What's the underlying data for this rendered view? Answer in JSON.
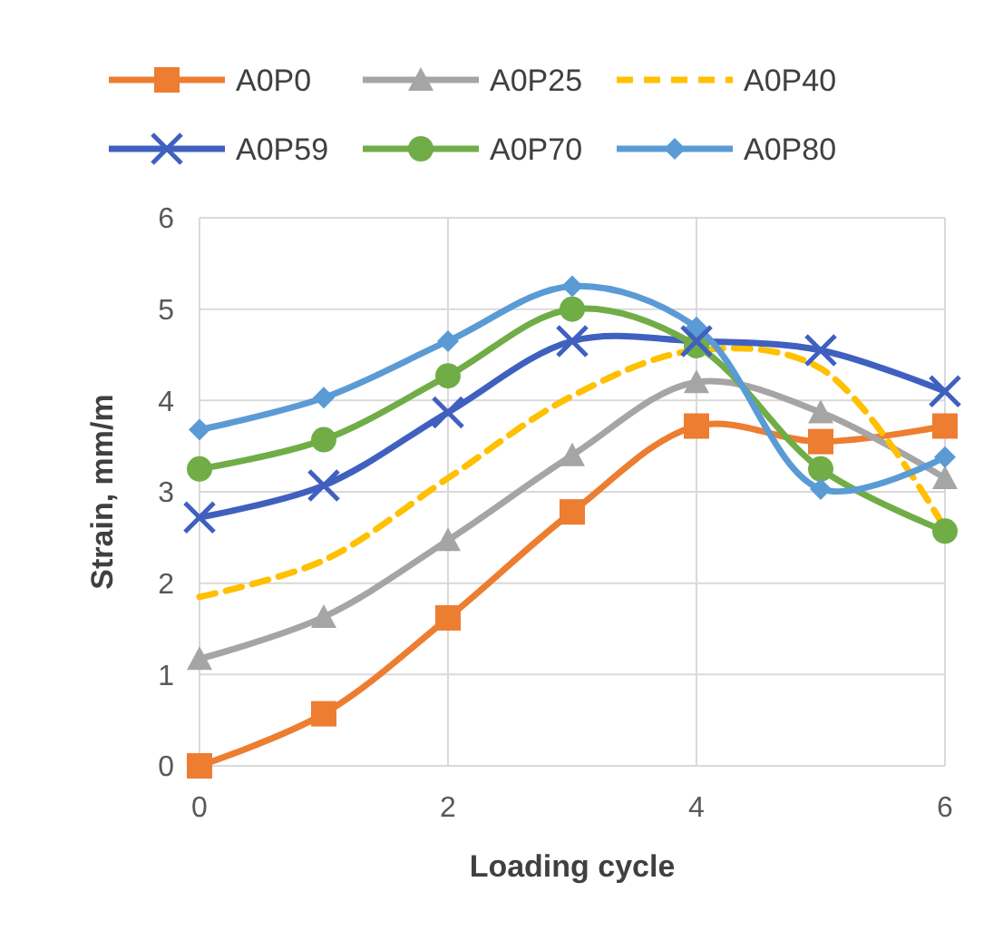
{
  "chart_data": {
    "type": "line",
    "xlabel": "Loading cycle",
    "ylabel": "Strain, mm/m",
    "x": [
      0,
      1,
      2,
      3,
      4,
      5,
      6
    ],
    "series": [
      {
        "name": "A0P0",
        "color": "#ed7d31",
        "marker": "square",
        "values": [
          0,
          0.57,
          1.62,
          2.78,
          3.72,
          3.55,
          3.72
        ]
      },
      {
        "name": "A0P25",
        "color": "#a5a5a5",
        "marker": "triangle",
        "values": [
          1.17,
          1.63,
          2.47,
          3.4,
          4.2,
          3.87,
          3.15
        ]
      },
      {
        "name": "A0P40",
        "color": "#ffc000",
        "marker": "none",
        "line_style": "dashed",
        "values": [
          1.85,
          2.25,
          3.15,
          4.05,
          4.55,
          4.35,
          2.6
        ]
      },
      {
        "name": "A0P59",
        "color": "#4060c0",
        "marker": "cross",
        "values": [
          2.72,
          3.07,
          3.87,
          4.65,
          4.65,
          4.55,
          4.1
        ]
      },
      {
        "name": "A0P70",
        "color": "#70ad47",
        "marker": "circle",
        "values": [
          3.25,
          3.57,
          4.27,
          5.0,
          4.6,
          3.25,
          2.57
        ]
      },
      {
        "name": "A0P80",
        "color": "#5b9bd5",
        "marker": "diamond",
        "values": [
          3.68,
          4.03,
          4.65,
          5.25,
          4.8,
          3.03,
          3.38
        ]
      }
    ],
    "xlim": [
      0,
      6
    ],
    "xticks": [
      0,
      2,
      4,
      6
    ],
    "ylim": [
      0,
      6
    ],
    "yticks": [
      0,
      1,
      2,
      3,
      4,
      5,
      6
    ],
    "grid": true,
    "legend": "top"
  }
}
